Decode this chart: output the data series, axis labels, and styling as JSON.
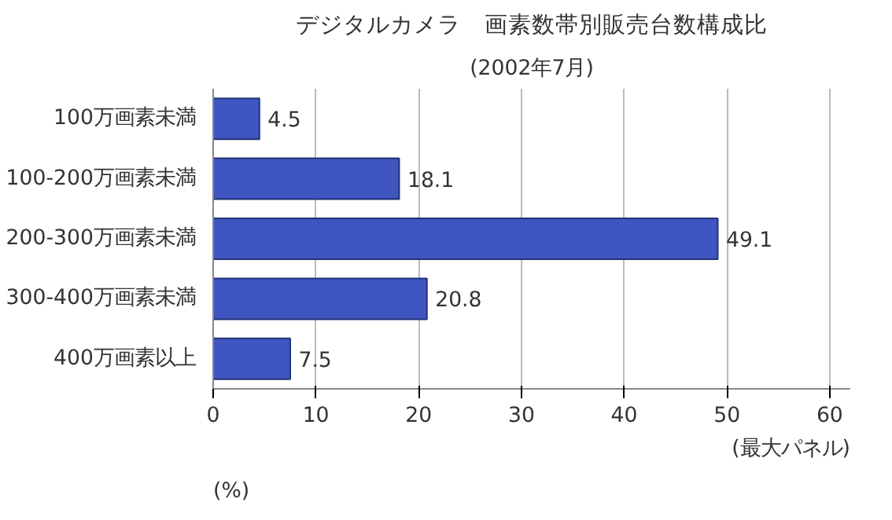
{
  "chart_data": {
    "type": "bar",
    "orientation": "horizontal",
    "title": "デジタルカメラ　画素数帯別販売台数構成比",
    "subtitle": "(2002年7月)",
    "xlabel": "(%)",
    "annotations": [
      "(最大パネル)"
    ],
    "categories": [
      "100万画素未満",
      "100-200万画素未満",
      "200-300万画素未満",
      "300-400万画素未満",
      "400万画素以上"
    ],
    "values": [
      4.5,
      18.1,
      49.1,
      20.8,
      7.5
    ],
    "color": "#3f55c0",
    "data_labels": true,
    "xlim": [
      0,
      62
    ],
    "xticks": [
      0,
      10,
      20,
      30,
      40,
      50,
      60
    ],
    "grid": "x"
  }
}
